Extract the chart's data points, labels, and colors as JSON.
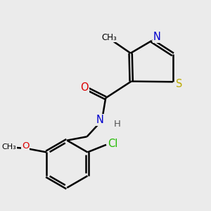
{
  "background_color": "#ebebeb",
  "atom_colors": {
    "C": "#000000",
    "N": "#0000cc",
    "O": "#dd0000",
    "S": "#bbaa00",
    "Cl": "#22bb00",
    "H": "#555555"
  },
  "figsize": [
    3.0,
    3.0
  ],
  "dpi": 100
}
